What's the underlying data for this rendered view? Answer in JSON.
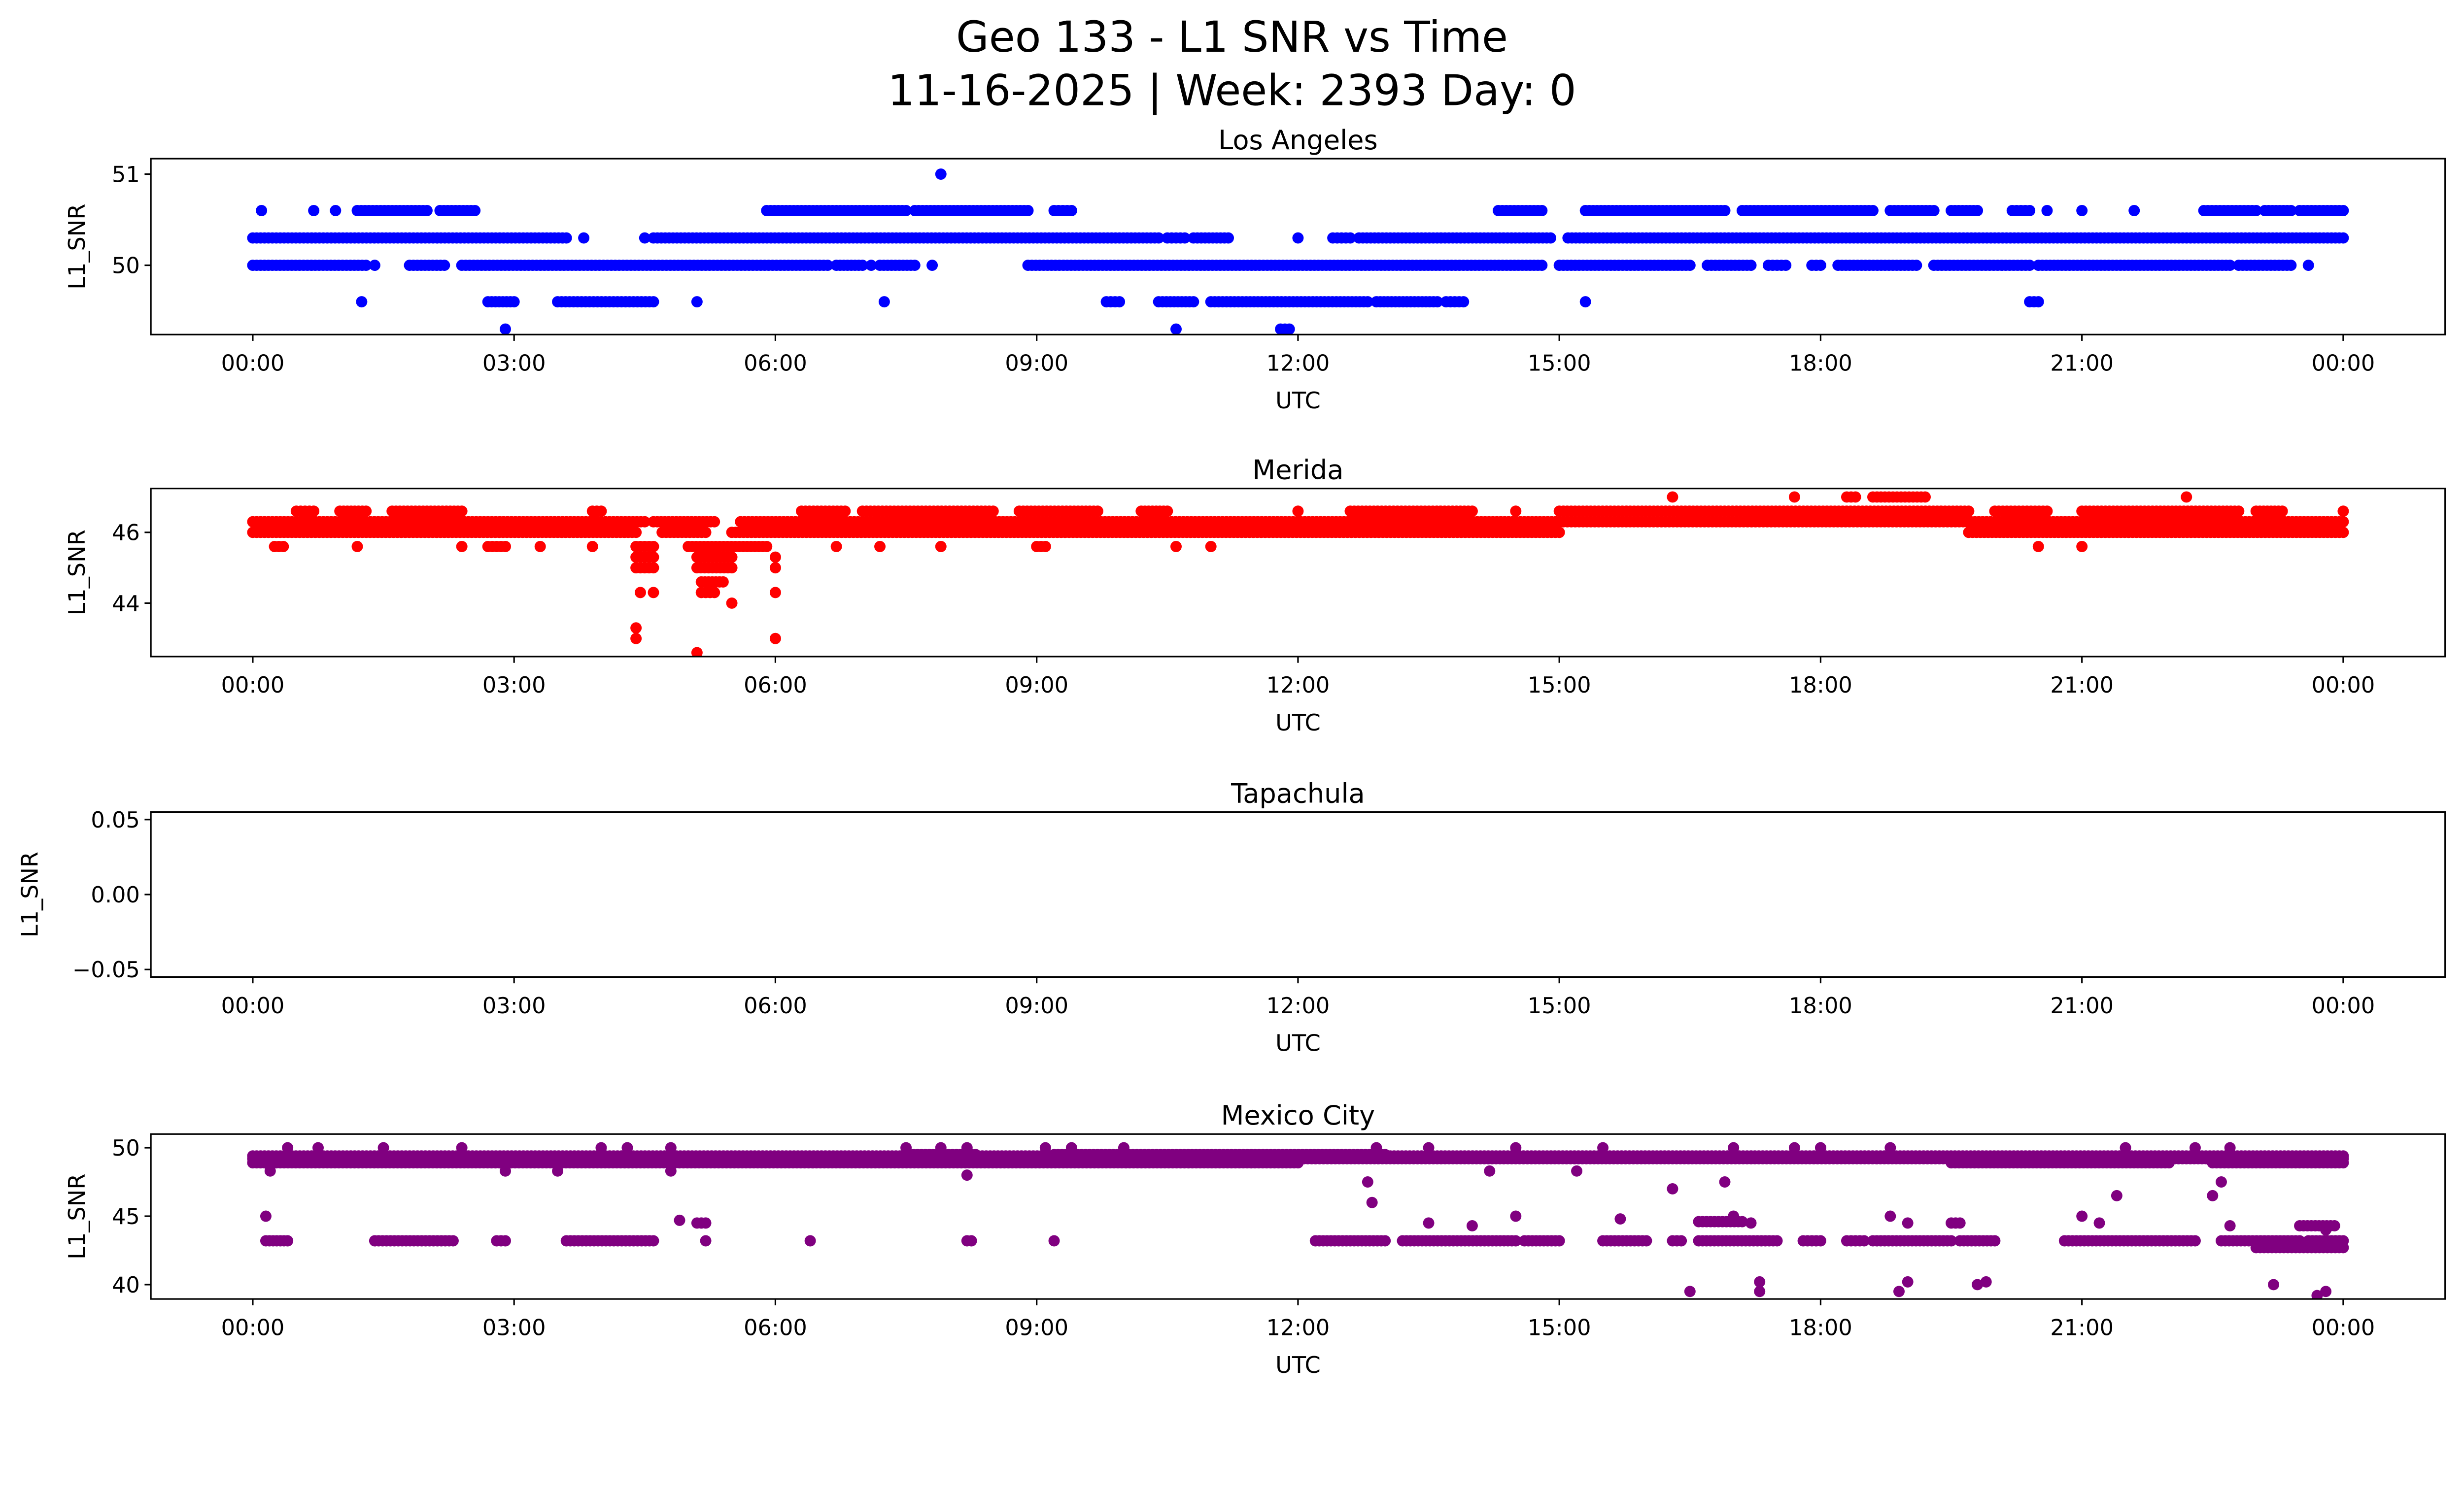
{
  "title_line1": "Geo 133 - L1 SNR vs Time",
  "title_line2": "11-16-2025 | Week: 2393 Day: 0",
  "chart_data": [
    {
      "type": "scatter",
      "title": "Los Angeles",
      "xlabel": "UTC",
      "ylabel": "L1_SNR",
      "color": "#0000ff",
      "xlim_hours": [
        -1.17,
        25.17
      ],
      "ylim": [
        49.24,
        51.17
      ],
      "xticks_hours": [
        0,
        3,
        6,
        9,
        12,
        15,
        18,
        21,
        24
      ],
      "xtick_labels": [
        "00:00",
        "03:00",
        "06:00",
        "09:00",
        "12:00",
        "15:00",
        "18:00",
        "21:00",
        "00:00"
      ],
      "yticks": [
        50,
        51
      ],
      "ytick_labels": [
        "50",
        "51"
      ],
      "segments_note": "each entry [start_hour, end_hour, L1_SNR]; dense observations along each run",
      "segments": [
        [
          7.9,
          7.9,
          51
        ],
        [
          0.1,
          0.1,
          50.6
        ],
        [
          0.7,
          0.7,
          50.6
        ],
        [
          0.95,
          0.95,
          50.6
        ],
        [
          1.2,
          2.0,
          50.6
        ],
        [
          2.15,
          2.55,
          50.6
        ],
        [
          5.9,
          7.5,
          50.6
        ],
        [
          7.6,
          8.9,
          50.6
        ],
        [
          9.2,
          9.4,
          50.6
        ],
        [
          14.3,
          14.8,
          50.6
        ],
        [
          15.3,
          16.9,
          50.6
        ],
        [
          17.1,
          18.6,
          50.6
        ],
        [
          18.8,
          19.3,
          50.6
        ],
        [
          19.5,
          19.8,
          50.6
        ],
        [
          20.2,
          20.4,
          50.6
        ],
        [
          20.6,
          20.6,
          50.6
        ],
        [
          21.0,
          21.0,
          50.6
        ],
        [
          21.6,
          21.6,
          50.6
        ],
        [
          22.4,
          23.0,
          50.6
        ],
        [
          23.1,
          23.4,
          50.6
        ],
        [
          23.5,
          24.0,
          50.6
        ],
        [
          0,
          3.6,
          50.3
        ],
        [
          3.8,
          3.8,
          50.3
        ],
        [
          4.5,
          4.5,
          50.3
        ],
        [
          4.6,
          10.4,
          50.3
        ],
        [
          10.5,
          10.7,
          50.3
        ],
        [
          10.8,
          11.2,
          50.3
        ],
        [
          12.0,
          12.0,
          50.3
        ],
        [
          12.4,
          12.6,
          50.3
        ],
        [
          12.7,
          14.9,
          50.3
        ],
        [
          15.1,
          24.0,
          50.3
        ],
        [
          0,
          1.3,
          50
        ],
        [
          1.4,
          1.4,
          50
        ],
        [
          1.8,
          2.2,
          50
        ],
        [
          2.4,
          6.6,
          50
        ],
        [
          6.7,
          7.0,
          50
        ],
        [
          7.1,
          7.1,
          50
        ],
        [
          7.2,
          7.6,
          50
        ],
        [
          7.8,
          7.8,
          50
        ],
        [
          8.9,
          14.8,
          50
        ],
        [
          15.0,
          16.5,
          50
        ],
        [
          16.7,
          17.2,
          50
        ],
        [
          17.4,
          17.6,
          50
        ],
        [
          17.9,
          18.0,
          50
        ],
        [
          18.2,
          19.1,
          50
        ],
        [
          19.3,
          20.4,
          50
        ],
        [
          20.5,
          22.7,
          50
        ],
        [
          22.8,
          23.4,
          50
        ],
        [
          23.6,
          23.6,
          50
        ],
        [
          1.25,
          1.25,
          49.6
        ],
        [
          2.7,
          3.0,
          49.6
        ],
        [
          3.5,
          4.6,
          49.6
        ],
        [
          5.1,
          5.1,
          49.6
        ],
        [
          7.25,
          7.25,
          49.6
        ],
        [
          9.8,
          9.95,
          49.6
        ],
        [
          10.4,
          10.8,
          49.6
        ],
        [
          11.0,
          12.8,
          49.6
        ],
        [
          12.9,
          13.6,
          49.6
        ],
        [
          13.7,
          13.9,
          49.6
        ],
        [
          15.3,
          15.3,
          49.6
        ],
        [
          20.4,
          20.5,
          49.6
        ],
        [
          2.9,
          2.9,
          49.3
        ],
        [
          10.6,
          10.6,
          49.3
        ],
        [
          11.8,
          11.9,
          49.3
        ]
      ]
    },
    {
      "type": "scatter",
      "title": "Merida",
      "xlabel": "UTC",
      "ylabel": "L1_SNR",
      "color": "#ff0000",
      "xlim_hours": [
        -1.17,
        25.17
      ],
      "ylim": [
        42.49,
        47.24
      ],
      "xticks_hours": [
        0,
        3,
        6,
        9,
        12,
        15,
        18,
        21,
        24
      ],
      "xtick_labels": [
        "00:00",
        "03:00",
        "06:00",
        "09:00",
        "12:00",
        "15:00",
        "18:00",
        "21:00",
        "00:00"
      ],
      "yticks": [
        44,
        46
      ],
      "ytick_labels": [
        "44",
        "46"
      ],
      "segments": [
        [
          0,
          4.5,
          46.3
        ],
        [
          4.6,
          5.3,
          46.3
        ],
        [
          5.6,
          24,
          46.3
        ],
        [
          0,
          4.4,
          46
        ],
        [
          4.7,
          5.2,
          46
        ],
        [
          5.5,
          15,
          46
        ],
        [
          19.7,
          24,
          46
        ],
        [
          0.5,
          0.7,
          46.6
        ],
        [
          1.0,
          1.3,
          46.6
        ],
        [
          1.6,
          2.4,
          46.6
        ],
        [
          3.9,
          4.0,
          46.6
        ],
        [
          6.3,
          6.8,
          46.6
        ],
        [
          7.0,
          8.5,
          46.6
        ],
        [
          8.8,
          9.7,
          46.6
        ],
        [
          10.2,
          10.5,
          46.6
        ],
        [
          12.0,
          12.0,
          46.6
        ],
        [
          12.6,
          14.0,
          46.6
        ],
        [
          14.5,
          14.5,
          46.6
        ],
        [
          15.0,
          19.7,
          46.6
        ],
        [
          20.0,
          20.6,
          46.6
        ],
        [
          21.0,
          22.8,
          46.6
        ],
        [
          23.0,
          23.3,
          46.6
        ],
        [
          24,
          24,
          46.6
        ],
        [
          0.25,
          0.35,
          45.6
        ],
        [
          1.2,
          1.2,
          45.6
        ],
        [
          2.4,
          2.4,
          45.6
        ],
        [
          2.7,
          2.9,
          45.6
        ],
        [
          3.3,
          3.3,
          45.6
        ],
        [
          3.9,
          3.9,
          45.6
        ],
        [
          4.4,
          4.6,
          45.6
        ],
        [
          5.0,
          5.9,
          45.6
        ],
        [
          6.7,
          6.7,
          45.6
        ],
        [
          7.2,
          7.2,
          45.6
        ],
        [
          7.9,
          7.9,
          45.6
        ],
        [
          9.0,
          9.1,
          45.6
        ],
        [
          10.6,
          10.6,
          45.6
        ],
        [
          11.0,
          11.0,
          45.6
        ],
        [
          20.5,
          20.5,
          45.6
        ],
        [
          21.0,
          21.0,
          45.6
        ],
        [
          16.3,
          16.3,
          47
        ],
        [
          17.7,
          17.7,
          47
        ],
        [
          18.3,
          18.4,
          47
        ],
        [
          18.6,
          19.2,
          47
        ],
        [
          22.2,
          22.2,
          47
        ],
        [
          4.4,
          4.6,
          45.3
        ],
        [
          4.4,
          4.6,
          45
        ],
        [
          4.45,
          4.45,
          44.3
        ],
        [
          4.6,
          4.6,
          44.3
        ],
        [
          4.4,
          4.4,
          43.3
        ],
        [
          4.4,
          4.4,
          43
        ],
        [
          5.1,
          5.1,
          42.6
        ],
        [
          5.1,
          5.5,
          45.3
        ],
        [
          5.1,
          5.5,
          45
        ],
        [
          5.15,
          5.4,
          44.6
        ],
        [
          5.15,
          5.3,
          44.3
        ],
        [
          5.5,
          5.5,
          44
        ],
        [
          6.0,
          6.0,
          45.3
        ],
        [
          6.0,
          6.0,
          45
        ],
        [
          6.0,
          6.0,
          44.3
        ],
        [
          6.0,
          6.0,
          43
        ]
      ]
    },
    {
      "type": "scatter",
      "title": "Tapachula",
      "xlabel": "UTC",
      "ylabel": "L1_SNR",
      "color": "#000000",
      "xlim_hours": [
        -1.17,
        25.17
      ],
      "ylim": [
        -0.055,
        0.055
      ],
      "xticks_hours": [
        0,
        3,
        6,
        9,
        12,
        15,
        18,
        21,
        24
      ],
      "xtick_labels": [
        "00:00",
        "03:00",
        "06:00",
        "09:00",
        "12:00",
        "15:00",
        "18:00",
        "21:00",
        "00:00"
      ],
      "yticks": [
        -0.05,
        0,
        0.05
      ],
      "ytick_labels": [
        "−0.05",
        "0.00",
        "0.05"
      ],
      "segments": []
    },
    {
      "type": "scatter",
      "title": "Mexico City",
      "xlabel": "UTC",
      "ylabel": "L1_SNR",
      "color": "#800080",
      "xlim_hours": [
        -1.17,
        25.17
      ],
      "ylim": [
        38.95,
        51.0
      ],
      "xticks_hours": [
        0,
        3,
        6,
        9,
        12,
        15,
        18,
        21,
        24
      ],
      "xtick_labels": [
        "00:00",
        "03:00",
        "06:00",
        "09:00",
        "12:00",
        "15:00",
        "18:00",
        "21:00",
        "00:00"
      ],
      "yticks": [
        40,
        45,
        50
      ],
      "ytick_labels": [
        "40",
        "45",
        "50"
      ],
      "segments": [
        [
          0,
          24,
          49.2
        ],
        [
          0,
          12,
          48.9
        ],
        [
          19.5,
          22,
          48.9
        ],
        [
          22.5,
          24,
          48.9
        ],
        [
          7.5,
          8.3,
          49.5
        ],
        [
          9.2,
          13,
          49.5
        ],
        [
          0,
          24,
          49.4
        ],
        [
          0.4,
          0.4,
          50
        ],
        [
          0.75,
          0.75,
          50
        ],
        [
          1.5,
          1.5,
          50
        ],
        [
          2.4,
          2.4,
          50
        ],
        [
          4.0,
          4.0,
          50
        ],
        [
          4.3,
          4.3,
          50
        ],
        [
          4.8,
          4.8,
          50
        ],
        [
          7.5,
          7.5,
          50
        ],
        [
          7.9,
          7.9,
          50
        ],
        [
          8.2,
          8.2,
          50
        ],
        [
          9.1,
          9.1,
          50
        ],
        [
          9.4,
          9.4,
          50
        ],
        [
          10.0,
          10.0,
          50
        ],
        [
          12.9,
          12.9,
          50
        ],
        [
          13.5,
          13.5,
          50
        ],
        [
          14.5,
          14.5,
          50
        ],
        [
          15.5,
          15.5,
          50
        ],
        [
          17.0,
          17.0,
          50
        ],
        [
          17.7,
          17.7,
          50
        ],
        [
          18.0,
          18.0,
          50
        ],
        [
          18.8,
          18.8,
          50
        ],
        [
          21.5,
          21.5,
          50
        ],
        [
          22.3,
          22.3,
          50
        ],
        [
          22.7,
          22.7,
          50
        ],
        [
          0.2,
          0.2,
          48.3
        ],
        [
          2.9,
          2.9,
          48.3
        ],
        [
          3.5,
          3.5,
          48.3
        ],
        [
          4.8,
          4.8,
          48.3
        ],
        [
          8.2,
          8.2,
          48
        ],
        [
          12.8,
          12.8,
          47.5
        ],
        [
          12.85,
          12.85,
          46
        ],
        [
          16.3,
          16.3,
          47
        ],
        [
          16.9,
          16.9,
          47.5
        ],
        [
          22.6,
          22.6,
          47.5
        ],
        [
          22.5,
          22.5,
          46.5
        ],
        [
          21.4,
          21.4,
          46.5
        ],
        [
          14.2,
          14.2,
          48.3
        ],
        [
          15.2,
          15.2,
          48.3
        ],
        [
          0.15,
          0.4,
          43.2
        ],
        [
          1.4,
          2.3,
          43.2
        ],
        [
          2.8,
          2.9,
          43.2
        ],
        [
          3.6,
          4.6,
          43.2
        ],
        [
          5.2,
          5.2,
          43.2
        ],
        [
          6.4,
          6.4,
          43.2
        ],
        [
          8.2,
          8.25,
          43.2
        ],
        [
          9.2,
          9.2,
          43.2
        ],
        [
          12.2,
          13.0,
          43.2
        ],
        [
          13.2,
          14.5,
          43.2
        ],
        [
          14.6,
          15.0,
          43.2
        ],
        [
          15.5,
          16.0,
          43.2
        ],
        [
          16.3,
          16.4,
          43.2
        ],
        [
          16.6,
          17.5,
          43.2
        ],
        [
          17.8,
          18.0,
          43.2
        ],
        [
          18.3,
          18.5,
          43.2
        ],
        [
          18.6,
          19.5,
          43.2
        ],
        [
          19.6,
          20.0,
          43.2
        ],
        [
          20.8,
          22.3,
          43.2
        ],
        [
          22.6,
          23.5,
          43.2
        ],
        [
          23.6,
          24.0,
          43.2
        ],
        [
          23.0,
          24.0,
          42.7
        ],
        [
          0.15,
          0.15,
          45
        ],
        [
          4.9,
          4.9,
          44.7
        ],
        [
          5.1,
          5.2,
          44.5
        ],
        [
          13.5,
          13.5,
          44.5
        ],
        [
          14.0,
          14.0,
          44.3
        ],
        [
          14.5,
          14.5,
          45
        ],
        [
          15.7,
          15.7,
          44.8
        ],
        [
          16.6,
          17.1,
          44.6
        ],
        [
          17.0,
          17.0,
          45
        ],
        [
          17.2,
          17.2,
          44.5
        ],
        [
          18.8,
          18.8,
          45
        ],
        [
          19.0,
          19.0,
          44.5
        ],
        [
          19.5,
          19.6,
          44.5
        ],
        [
          21.0,
          21.0,
          45
        ],
        [
          21.2,
          21.2,
          44.5
        ],
        [
          22.7,
          22.7,
          44.3
        ],
        [
          23.5,
          23.9,
          44.3
        ],
        [
          23.8,
          23.8,
          44
        ],
        [
          16.5,
          16.5,
          39.5
        ],
        [
          17.3,
          17.3,
          40.2
        ],
        [
          17.3,
          17.3,
          39.5
        ],
        [
          18.9,
          18.9,
          39.5
        ],
        [
          19.0,
          19.0,
          40.2
        ],
        [
          19.8,
          19.8,
          40
        ],
        [
          19.9,
          19.9,
          40.2
        ],
        [
          23.2,
          23.2,
          40
        ],
        [
          23.7,
          23.7,
          39.2
        ],
        [
          23.8,
          23.8,
          39.5
        ]
      ]
    }
  ]
}
